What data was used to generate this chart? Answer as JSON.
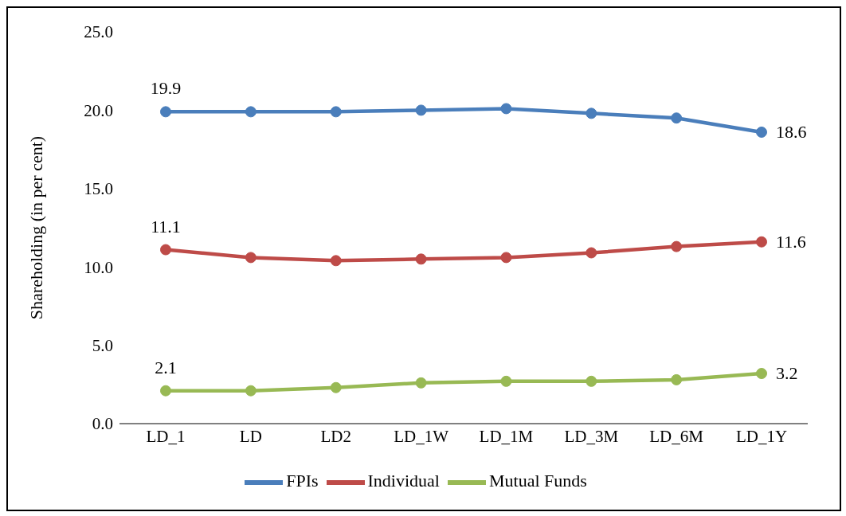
{
  "chart_data": {
    "type": "line",
    "ylabel": "Shareholding (in per cent)",
    "categories": [
      "LD_1",
      "LD",
      "LD2",
      "LD_1W",
      "LD_1M",
      "LD_3M",
      "LD_6M",
      "LD_1Y"
    ],
    "series": [
      {
        "name": "FPIs",
        "color": "#4a7ebb",
        "values": [
          19.9,
          19.9,
          19.9,
          20.0,
          20.1,
          19.8,
          19.5,
          18.6
        ],
        "value_labels": [
          "19.9",
          null,
          null,
          null,
          null,
          null,
          null,
          "18.6"
        ]
      },
      {
        "name": "Individual",
        "color": "#be4b48",
        "values": [
          11.1,
          10.6,
          10.4,
          10.5,
          10.6,
          10.9,
          11.3,
          11.6
        ],
        "value_labels": [
          "11.1",
          null,
          null,
          null,
          null,
          null,
          null,
          "11.6"
        ]
      },
      {
        "name": "Mutual Funds",
        "color": "#98b954",
        "values": [
          2.1,
          2.1,
          2.3,
          2.6,
          2.7,
          2.7,
          2.8,
          3.2
        ],
        "value_labels": [
          "2.1",
          null,
          null,
          null,
          null,
          null,
          null,
          "3.2"
        ]
      }
    ],
    "ylim": [
      0,
      25
    ],
    "yticks": [
      {
        "value": 0,
        "label": "0.0"
      },
      {
        "value": 5,
        "label": "5.0"
      },
      {
        "value": 10,
        "label": "10.0"
      },
      {
        "value": 15,
        "label": "15.0"
      },
      {
        "value": 20,
        "label": "20.0"
      },
      {
        "value": 25,
        "label": "25.0"
      }
    ],
    "grid": false,
    "legend": "bottom",
    "marker": "circle",
    "line_style": "solid"
  }
}
